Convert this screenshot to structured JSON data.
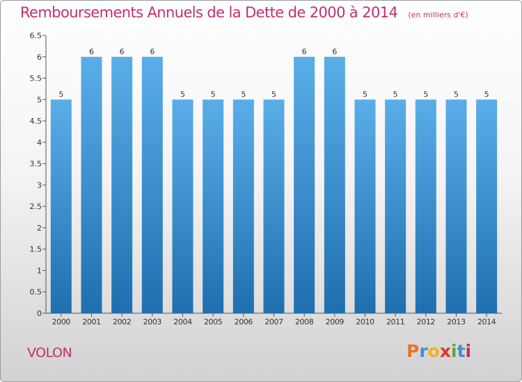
{
  "header": {
    "title": "Remboursements Annuels de la Dette de 2000 à 2014",
    "unit": "(en milliers d'€)"
  },
  "footer": {
    "commune": "VOLON",
    "logo_letters": [
      "P",
      "r",
      "o",
      "x",
      "i",
      "t",
      "i"
    ],
    "logo_colors": [
      "#e8732a",
      "#3f8ed8",
      "#f2b21c",
      "#d93a2b",
      "#58a83e",
      "#3f8ed8",
      "#c0306a"
    ]
  },
  "chart_data": {
    "type": "bar",
    "title": "Remboursements Annuels de la Dette de 2000 à 2014",
    "unit": "(en milliers d'€)",
    "categories": [
      "2000",
      "2001",
      "2002",
      "2003",
      "2004",
      "2005",
      "2006",
      "2007",
      "2008",
      "2009",
      "2010",
      "2011",
      "2012",
      "2013",
      "2014"
    ],
    "values": [
      5,
      6,
      6,
      6,
      5,
      5,
      5,
      5,
      6,
      6,
      5,
      5,
      5,
      5,
      5
    ],
    "data_labels": [
      "5",
      "6",
      "6",
      "6",
      "5",
      "5",
      "5",
      "5",
      "6",
      "6",
      "5",
      "5",
      "5",
      "5",
      "5"
    ],
    "yticks": [
      "0",
      "0.5",
      "1",
      "1.5",
      "2",
      "2.5",
      "3",
      "3.5",
      "4",
      "4.5",
      "5",
      "5.5",
      "6",
      "6.5"
    ],
    "ylim": [
      0,
      6.5
    ],
    "grid": false,
    "colors": {
      "bar_top": "#5aaee8",
      "bar_bottom": "#1f6fb0",
      "text": "#333333"
    }
  }
}
